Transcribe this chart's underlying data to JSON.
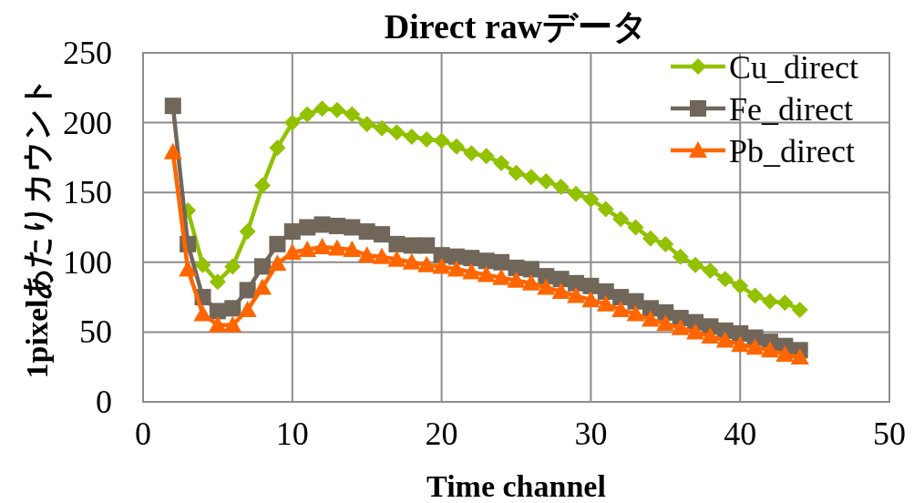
{
  "chart_data": {
    "type": "line",
    "title": "Direct rawデータ",
    "xlabel": "Time channel",
    "ylabel": "1pixelあたりカウント",
    "x": [
      2,
      3,
      4,
      5,
      6,
      7,
      8,
      9,
      10,
      11,
      12,
      13,
      14,
      15,
      16,
      17,
      18,
      19,
      20,
      21,
      22,
      23,
      24,
      25,
      26,
      27,
      28,
      29,
      30,
      31,
      32,
      33,
      34,
      35,
      36,
      37,
      38,
      39,
      40,
      41,
      42,
      43,
      44
    ],
    "series": [
      {
        "name": "Cu_direct",
        "color": "#92c100",
        "marker": "diamond",
        "values": [
          null,
          137,
          98,
          86,
          97,
          122,
          155,
          182,
          200,
          206,
          210,
          209,
          206,
          199,
          196,
          193,
          190,
          188,
          187,
          183,
          178,
          176,
          171,
          164,
          161,
          158,
          154,
          149,
          145,
          138,
          131,
          125,
          117,
          113,
          104,
          98,
          94,
          88,
          83,
          76,
          72,
          71,
          66
        ]
      },
      {
        "name": "Fe_direct",
        "color": "#70665a",
        "marker": "square",
        "values": [
          212,
          113,
          75,
          65,
          67,
          80,
          97,
          113,
          122,
          125,
          127,
          126,
          125,
          122,
          120,
          113,
          112,
          112,
          105,
          104,
          103,
          101,
          100,
          96,
          95,
          90,
          88,
          85,
          83,
          79,
          75,
          72,
          67,
          64,
          60,
          57,
          54,
          51,
          49,
          46,
          43,
          40,
          37
        ]
      },
      {
        "name": "Pb_direct",
        "color": "#ff6600",
        "marker": "triangle",
        "values": [
          179,
          95,
          63,
          55,
          55,
          66,
          82,
          99,
          107,
          109,
          111,
          110,
          109,
          105,
          104,
          102,
          100,
          98,
          97,
          95,
          93,
          91,
          89,
          87,
          85,
          82,
          79,
          76,
          73,
          70,
          66,
          63,
          59,
          56,
          53,
          50,
          47,
          44,
          41,
          39,
          37,
          34,
          32
        ]
      }
    ],
    "xlim": [
      0,
      50
    ],
    "xticks": [
      0,
      10,
      20,
      30,
      40,
      50
    ],
    "ylim": [
      0,
      250
    ],
    "yticks": [
      0,
      50,
      100,
      150,
      200,
      250
    ],
    "grid": true,
    "legend": "top right",
    "line_style": "solid"
  }
}
